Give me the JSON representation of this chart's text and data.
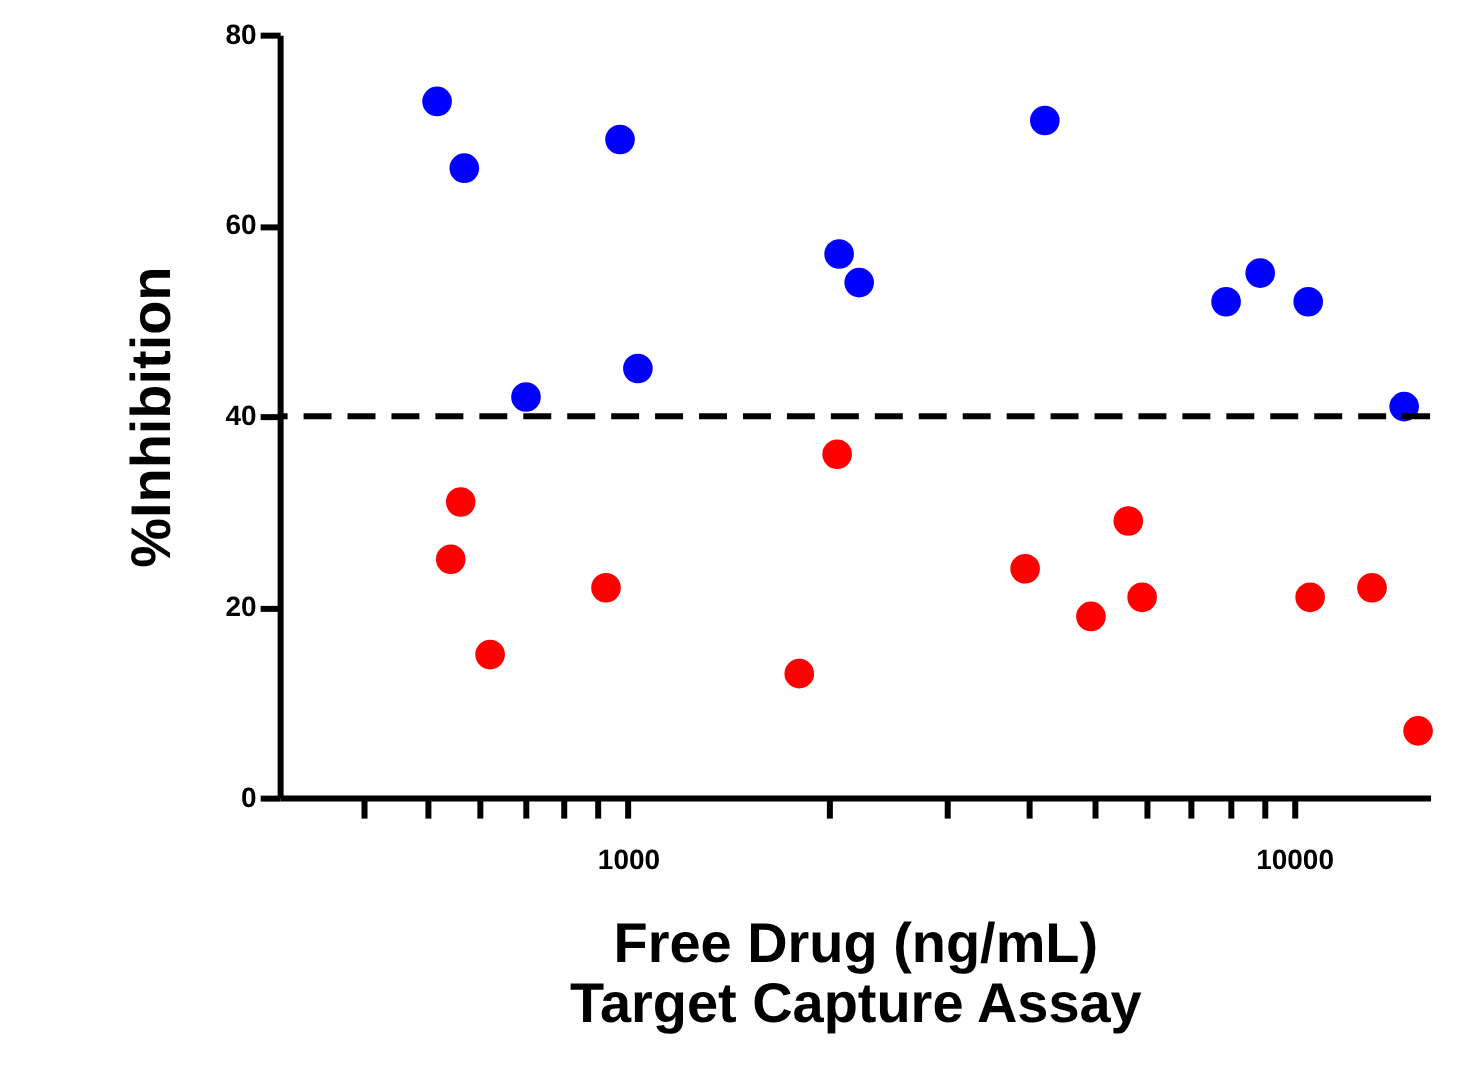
{
  "chart_data": {
    "type": "scatter",
    "xlabel": "Free Drug (ng/mL)\nTarget Capture Assay",
    "ylabel": "%Inhibition",
    "log": "x",
    "xlim": [
      300,
      16000
    ],
    "ylim": [
      0,
      80
    ],
    "yticks": [
      0,
      20,
      40,
      60,
      80
    ],
    "xticks": [
      {
        "value": 400,
        "label": null
      },
      {
        "value": 500,
        "label": null
      },
      {
        "value": 600,
        "label": null
      },
      {
        "value": 700,
        "label": null
      },
      {
        "value": 800,
        "label": null
      },
      {
        "value": 900,
        "label": null
      },
      1000,
      {
        "value": 2000,
        "label": null
      },
      {
        "value": 3000,
        "label": null
      },
      {
        "value": 4000,
        "label": null
      },
      {
        "value": 5000,
        "label": null
      },
      {
        "value": 6000,
        "label": null
      },
      {
        "value": 7000,
        "label": null
      },
      {
        "value": 8000,
        "label": null
      },
      {
        "value": 9000,
        "label": null
      },
      10000
    ],
    "grid": false,
    "legend": false,
    "marker": "circle",
    "series": [
      {
        "color": "#0000ff",
        "x": [
          517,
          568,
          703,
          973,
          1035,
          2075,
          2224,
          4225,
          7905,
          8895,
          10500,
          14630
        ],
        "values": [
          73,
          66,
          42,
          69,
          45,
          57,
          54,
          71,
          52,
          55,
          52,
          41
        ]
      },
      {
        "color": "#ff0000",
        "x": [
          561,
          542,
          621,
          927,
          1808,
          2061,
          3947,
          4955,
          5638,
          5914,
          10570,
          13090,
          15350
        ],
        "values": [
          31,
          25,
          15,
          22,
          13,
          36,
          24,
          19,
          29,
          21,
          21,
          22,
          7
        ]
      }
    ],
    "ref_lines": [
      {
        "axis": "y",
        "value": 40,
        "label": null,
        "color": "#000000",
        "line_style": "dashed"
      }
    ]
  }
}
